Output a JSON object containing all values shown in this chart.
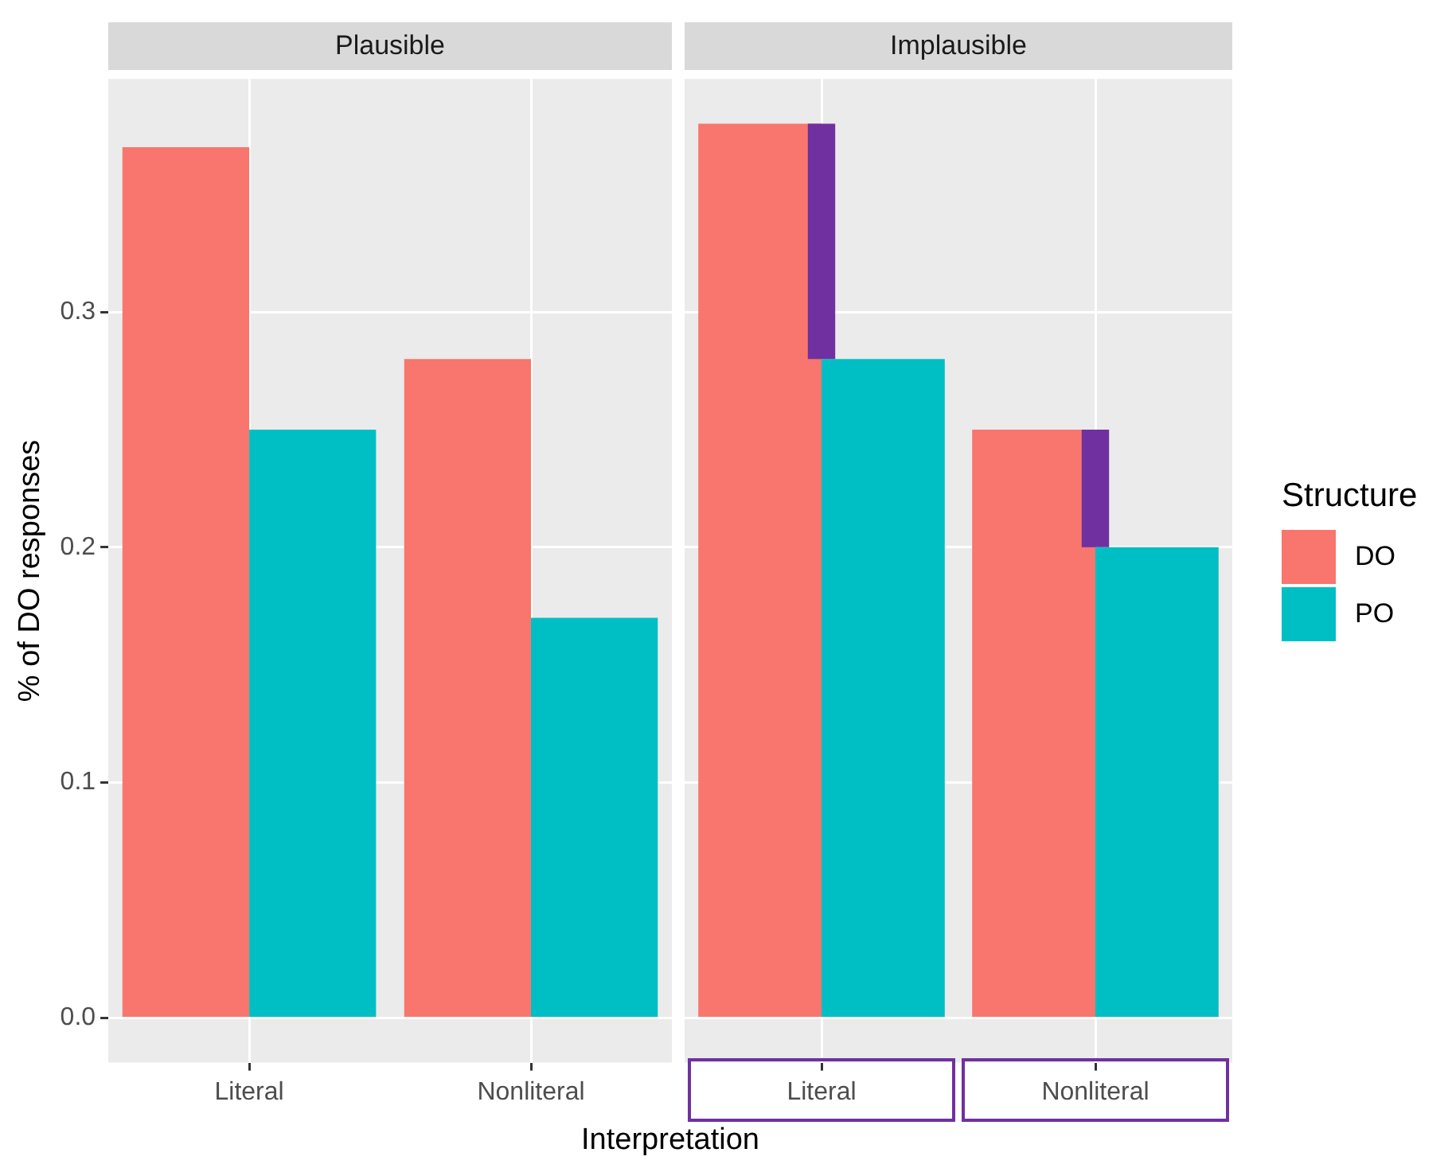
{
  "chart_data": [
    {
      "type": "bar",
      "title": "Plausible",
      "legend_title": "Structure",
      "legend": "right",
      "ylabel": "% of DO responses",
      "xlabel": "Interpretation",
      "categories": [
        "Literal",
        "Nonliteral"
      ],
      "series": [
        {
          "name": "DO",
          "color": "#f8766d",
          "values": [
            0.37,
            0.28
          ]
        },
        {
          "name": "PO",
          "color": "#00bfc4",
          "values": [
            0.25,
            0.17
          ]
        }
      ],
      "ylim": [
        -0.019,
        0.399
      ],
      "yticks": [
        {
          "value": 0,
          "label": "0.0"
        },
        0.1,
        0.2,
        0.3
      ],
      "grid": true
    },
    {
      "type": "bar",
      "title": "Implausible",
      "categories": [
        "Literal",
        "Nonliteral"
      ],
      "series": [
        {
          "color": "#f8766d",
          "values": [
            0.38,
            0.25
          ]
        },
        {
          "color": "#00bfc4",
          "values": [
            0.28,
            0.2
          ]
        },
        {
          "color": "#7030a0",
          "base": [
            0.28,
            0.2
          ],
          "values": [
            0.1,
            0.05
          ]
        }
      ],
      "ylim": [
        -0.019,
        0.399
      ],
      "yticks": [
        0,
        0.1,
        0.2,
        0.3
      ],
      "grid": true,
      "tick_labels": "x"
    }
  ]
}
